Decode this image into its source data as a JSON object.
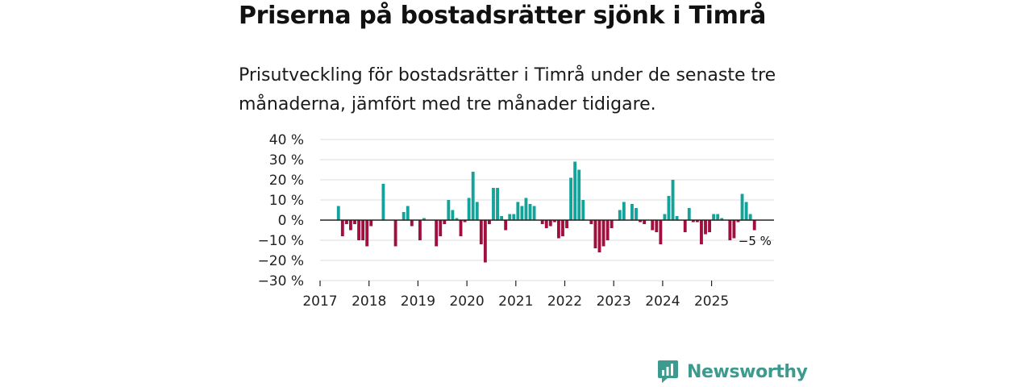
{
  "header": {
    "title": "Priserna på bostadsrätter sjönk i Timrå",
    "subtitle": "Prisutveckling för bostadsrätter i Timrå under de senaste tre månaderna, jämfört med tre månader tidigare."
  },
  "brand": {
    "name": "Newsworthy"
  },
  "colors": {
    "positive": "#14a39a",
    "negative": "#a0103e",
    "grid": "#dddddd",
    "axis": "#222222",
    "brand": "#3d9a8e"
  },
  "chart_data": {
    "type": "bar",
    "title": "Priserna på bostadsrätter sjönk i Timrå",
    "subtitle": "Prisutveckling för bostadsrätter i Timrå under de senaste tre månaderna, jämfört med tre månader tidigare.",
    "xlabel": "",
    "ylabel": "",
    "unit": "%",
    "ylim": [
      -30,
      40
    ],
    "yticks": [
      40,
      30,
      20,
      10,
      0,
      -10,
      -20,
      -30
    ],
    "ytick_labels": [
      "40 %",
      "30 %",
      "20 %",
      "10 %",
      "0 %",
      "−10 %",
      "−20 %",
      "−30 %"
    ],
    "xtick_labels": [
      "2017",
      "2018",
      "2019",
      "2020",
      "2021",
      "2022",
      "2023",
      "2024",
      "2025"
    ],
    "start": "2017-01",
    "end": "2025-11",
    "frequency": "monthly",
    "first_data_month": "2017-05",
    "values": [
      7,
      -8,
      -2,
      -5,
      -2,
      -10,
      -10,
      -13,
      -3,
      0,
      0,
      18,
      0,
      0,
      -13,
      0,
      4,
      7,
      -3,
      0,
      -10,
      1,
      0,
      0,
      -13,
      -8,
      -2,
      10,
      5,
      1,
      -8,
      -1,
      11,
      24,
      9,
      -12,
      -21,
      -2,
      16,
      16,
      2,
      -5,
      3,
      3,
      9,
      7,
      11,
      8,
      7,
      0,
      -2,
      -4,
      -3,
      -1,
      -9,
      -8,
      -4,
      21,
      29,
      25,
      10,
      0,
      -2,
      -14,
      -16,
      -13,
      -10,
      -4,
      0,
      5,
      9,
      0,
      8,
      6,
      -1,
      -2,
      0,
      -5,
      -6,
      -12,
      3,
      12,
      20,
      2,
      0,
      -6,
      6,
      -1,
      -1,
      -12,
      -7,
      -6,
      3,
      3,
      1,
      0,
      -10,
      -9,
      -1,
      13,
      9,
      3,
      -5
    ],
    "annotation": {
      "label": "−5 %",
      "target": "last"
    }
  }
}
